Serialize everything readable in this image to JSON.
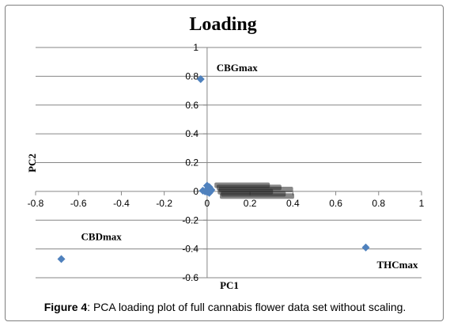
{
  "caption": {
    "label": "Figure 4",
    "text": ": PCA loading plot of full cannabis flower data set without scaling."
  },
  "chart_data": {
    "type": "scatter",
    "title": "Loading",
    "xlabel": "PC1",
    "ylabel": "PC2",
    "xlim": [
      -0.8,
      1
    ],
    "ylim": [
      -0.6,
      1
    ],
    "x_ticks": [
      "-0.8",
      "-0.6",
      "-0.4",
      "-0.2",
      "0",
      "0.2",
      "0.4",
      "0.6",
      "0.8",
      "1"
    ],
    "y_ticks": [
      "-0.6",
      "-0.4",
      "-0.2",
      "0",
      "0.2",
      "0.4",
      "0.6",
      "0.8",
      "1"
    ],
    "x_tick_values": [
      -0.8,
      -0.6,
      -0.4,
      -0.2,
      0,
      0.2,
      0.4,
      0.6,
      0.8,
      1
    ],
    "y_tick_values": [
      -0.6,
      -0.4,
      -0.2,
      0,
      0.2,
      0.4,
      0.6,
      0.8,
      1
    ],
    "grid": "horizontal",
    "marker_color": "#4f81bd",
    "points": [
      {
        "label": "CBGmax",
        "x": -0.03,
        "y": 0.78
      },
      {
        "label": "CBDmax",
        "x": -0.68,
        "y": -0.47
      },
      {
        "label": "THCmax",
        "x": 0.74,
        "y": -0.39
      },
      {
        "label": "",
        "x": 0.0,
        "y": 0.04
      },
      {
        "label": "",
        "x": 0.01,
        "y": 0.03
      },
      {
        "label": "",
        "x": 0.005,
        "y": 0.02
      },
      {
        "label": "",
        "x": 0.02,
        "y": 0.01
      },
      {
        "label": "",
        "x": 0.0,
        "y": 0.01
      },
      {
        "label": "",
        "x": -0.01,
        "y": 0.0
      },
      {
        "label": "",
        "x": -0.02,
        "y": 0.005
      },
      {
        "label": "",
        "x": 0.01,
        "y": -0.01
      },
      {
        "label": "",
        "x": 0.0,
        "y": -0.005
      },
      {
        "label": "",
        "x": 0.015,
        "y": 0.0
      }
    ]
  }
}
